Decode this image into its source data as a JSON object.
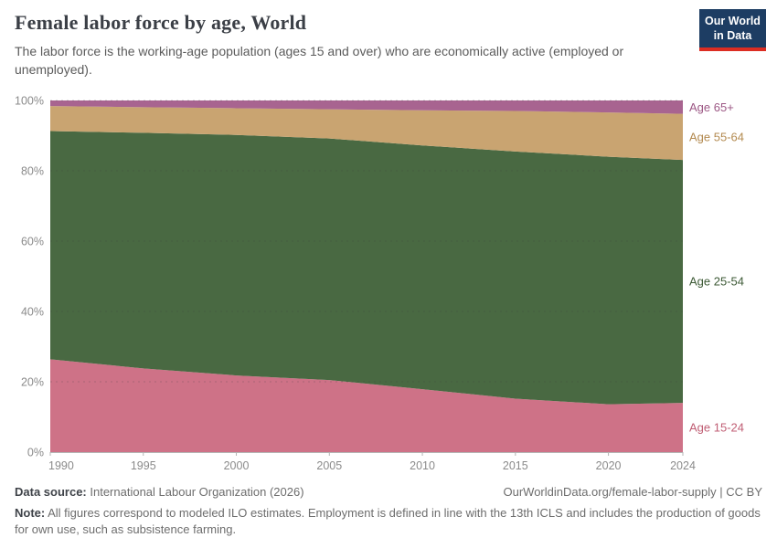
{
  "header": {
    "title": "Female labor force by age, World",
    "subtitle": "The labor force is the working-age population (ages 15 and over) who are economically active (employed or unemployed).",
    "logo": {
      "line1": "Our World",
      "line2": "in Data"
    }
  },
  "chart_data": {
    "type": "area",
    "stacked": true,
    "unit": "%",
    "title": "Female labor force by age, World",
    "x": [
      1990,
      1995,
      2000,
      2005,
      2010,
      2015,
      2020,
      2024
    ],
    "series": [
      {
        "name": "Age 15-24",
        "color": "#CE7287",
        "label_color": "#c05e74",
        "values": [
          26.4,
          23.8,
          21.8,
          20.5,
          17.9,
          15.2,
          13.6,
          14.0
        ]
      },
      {
        "name": "Age 25-54",
        "color": "#496942",
        "label_color": "#3d5a36",
        "values": [
          64.9,
          67.0,
          68.4,
          68.7,
          69.3,
          70.3,
          70.4,
          69.1
        ]
      },
      {
        "name": "Age 55-64",
        "color": "#C9A471",
        "label_color": "#b38a50",
        "values": [
          7.1,
          7.3,
          7.6,
          8.3,
          10.0,
          11.5,
          12.6,
          13.1
        ]
      },
      {
        "name": "Age 65+",
        "color": "#A86490",
        "label_color": "#9c5784",
        "values": [
          1.6,
          1.9,
          2.2,
          2.5,
          2.8,
          3.0,
          3.4,
          3.8
        ]
      }
    ],
    "ylim": [
      0,
      100
    ],
    "yticks": [
      "0%",
      "20%",
      "40%",
      "60%",
      "80%",
      "100%"
    ],
    "xticks": [
      1990,
      1995,
      2000,
      2005,
      2010,
      2015,
      2020,
      2024
    ],
    "grid": "dashed",
    "legend_position": "right-edge-labels"
  },
  "footer": {
    "source_label": "Data source:",
    "source_text": "International Labour Organization (2026)",
    "link_text": "OurWorldinData.org/female-labor-supply",
    "separator": "|",
    "license": "CC BY",
    "note_label": "Note:",
    "note_text": "All figures correspond to modeled ILO estimates. Employment is defined in line with the 13th ICLS and includes the production of goods for own use, such as subsistence farming."
  }
}
